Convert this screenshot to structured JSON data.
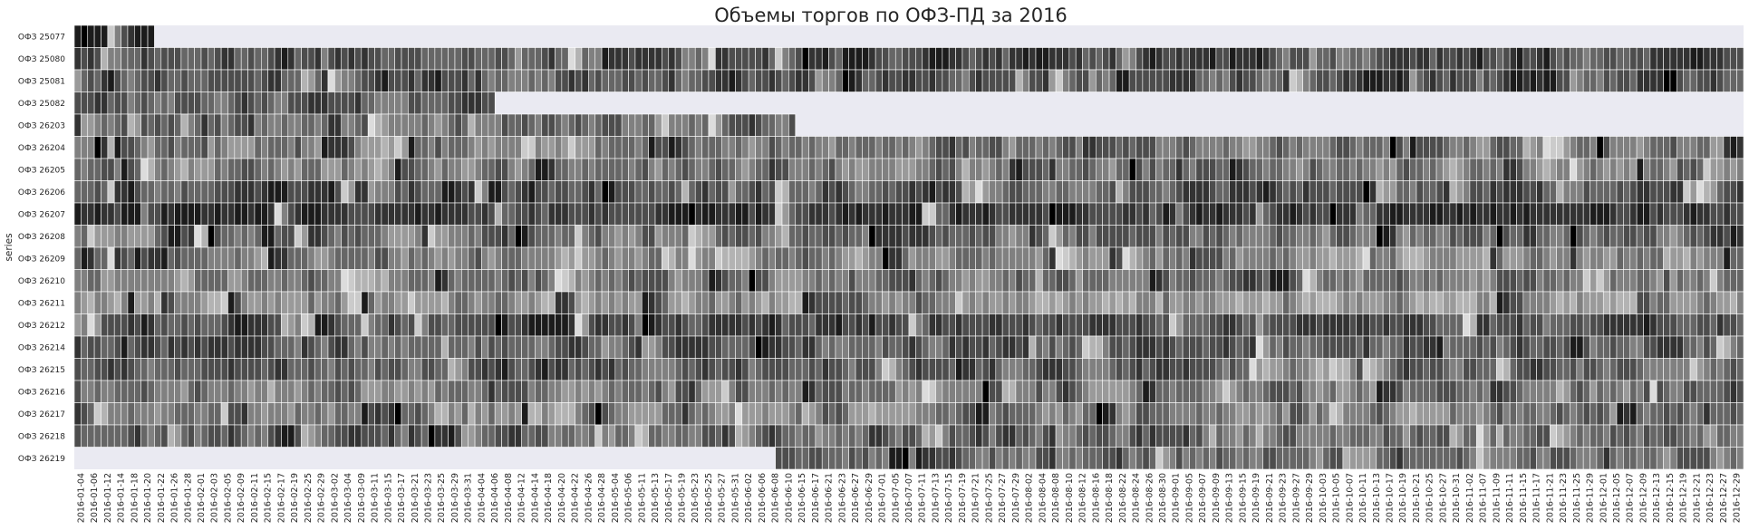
{
  "chart_data": {
    "type": "heatmap",
    "title": "Объемы торгов по ОФЗ-ПД за 2016",
    "ylabel": "series",
    "xlabel": "",
    "colormap": "greys",
    "missing_color": "#eaeaf2",
    "grid_color": "#ffffff",
    "y_categories": [
      "ОФЗ 25077",
      "ОФЗ 25080",
      "ОФЗ 25081",
      "ОФЗ 25082",
      "ОФЗ 26203",
      "ОФЗ 26204",
      "ОФЗ 26205",
      "ОФЗ 26206",
      "ОФЗ 26207",
      "ОФЗ 26208",
      "ОФЗ 26209",
      "ОФЗ 26210",
      "ОФЗ 26211",
      "ОФЗ 26212",
      "ОФЗ 26214",
      "ОФЗ 26215",
      "ОФЗ 26216",
      "ОФЗ 26217",
      "ОФЗ 26218",
      "ОФЗ 26219"
    ],
    "x_categories": [
      "2016-01-04",
      "2016-01-06",
      "2016-01-12",
      "2016-01-14",
      "2016-01-18",
      "2016-01-20",
      "2016-01-22",
      "2016-01-26",
      "2016-01-28",
      "2016-02-01",
      "2016-02-03",
      "2016-02-05",
      "2016-02-09",
      "2016-02-11",
      "2016-02-15",
      "2016-02-17",
      "2016-02-19",
      "2016-02-25",
      "2016-02-29",
      "2016-03-02",
      "2016-03-04",
      "2016-03-09",
      "2016-03-11",
      "2016-03-15",
      "2016-03-17",
      "2016-03-21",
      "2016-03-23",
      "2016-03-25",
      "2016-03-29",
      "2016-03-31",
      "2016-04-04",
      "2016-04-06",
      "2016-04-08",
      "2016-04-12",
      "2016-04-14",
      "2016-04-18",
      "2016-04-20",
      "2016-04-22",
      "2016-04-26",
      "2016-04-28",
      "2016-05-04",
      "2016-05-06",
      "2016-05-11",
      "2016-05-13",
      "2016-05-17",
      "2016-05-19",
      "2016-05-23",
      "2016-05-25",
      "2016-05-27",
      "2016-05-31",
      "2016-06-02",
      "2016-06-06",
      "2016-06-08",
      "2016-06-10",
      "2016-06-15",
      "2016-06-17",
      "2016-06-21",
      "2016-06-23",
      "2016-06-27",
      "2016-06-29",
      "2016-07-01",
      "2016-07-05",
      "2016-07-07",
      "2016-07-11",
      "2016-07-13",
      "2016-07-15",
      "2016-07-19",
      "2016-07-21",
      "2016-07-25",
      "2016-07-27",
      "2016-07-29",
      "2016-08-02",
      "2016-08-04",
      "2016-08-08",
      "2016-08-10",
      "2016-08-12",
      "2016-08-16",
      "2016-08-18",
      "2016-08-22",
      "2016-08-24",
      "2016-08-26",
      "2016-08-30",
      "2016-09-01",
      "2016-09-05",
      "2016-09-07",
      "2016-09-09",
      "2016-09-13",
      "2016-09-15",
      "2016-09-19",
      "2016-09-21",
      "2016-09-23",
      "2016-09-27",
      "2016-09-29",
      "2016-10-03",
      "2016-10-05",
      "2016-10-07",
      "2016-10-11",
      "2016-10-13",
      "2016-10-17",
      "2016-10-19",
      "2016-10-21",
      "2016-10-25",
      "2016-10-27",
      "2016-10-31",
      "2016-11-02",
      "2016-11-07",
      "2016-11-09",
      "2016-11-11",
      "2016-11-15",
      "2016-11-17",
      "2016-11-21",
      "2016-11-23",
      "2016-11-25",
      "2016-11-29",
      "2016-12-01",
      "2016-12-05",
      "2016-12-07",
      "2016-12-09",
      "2016-12-13",
      "2016-12-15",
      "2016-12-19",
      "2016-12-21",
      "2016-12-23",
      "2016-12-27",
      "2016-12-29"
    ],
    "cells_per_label": 2,
    "value_range": [
      0,
      1
    ],
    "series_activity": [
      {
        "start": 0,
        "end": 11,
        "base": 0.95,
        "spread": 0.15
      },
      {
        "start": 0,
        "end": 249,
        "base": 0.68,
        "spread": 0.3
      },
      {
        "start": 0,
        "end": 249,
        "base": 0.66,
        "spread": 0.32
      },
      {
        "start": 0,
        "end": 62,
        "base": 0.6,
        "spread": 0.32
      },
      {
        "start": 0,
        "end": 107,
        "base": 0.62,
        "spread": 0.32
      },
      {
        "start": 0,
        "end": 249,
        "base": 0.5,
        "spread": 0.32
      },
      {
        "start": 0,
        "end": 249,
        "base": 0.48,
        "spread": 0.32
      },
      {
        "start": 0,
        "end": 249,
        "base": 0.66,
        "spread": 0.3
      },
      {
        "start": 0,
        "end": 249,
        "base": 0.8,
        "spread": 0.22
      },
      {
        "start": 0,
        "end": 249,
        "base": 0.55,
        "spread": 0.32
      },
      {
        "start": 0,
        "end": 249,
        "base": 0.42,
        "spread": 0.3
      },
      {
        "start": 0,
        "end": 249,
        "base": 0.52,
        "spread": 0.32
      },
      {
        "start": 0,
        "end": 249,
        "base": 0.38,
        "spread": 0.3
      },
      {
        "start": 0,
        "end": 249,
        "base": 0.72,
        "spread": 0.28
      },
      {
        "start": 0,
        "end": 249,
        "base": 0.62,
        "spread": 0.32
      },
      {
        "start": 0,
        "end": 249,
        "base": 0.6,
        "spread": 0.32
      },
      {
        "start": 0,
        "end": 249,
        "base": 0.52,
        "spread": 0.32
      },
      {
        "start": 0,
        "end": 249,
        "base": 0.5,
        "spread": 0.34
      },
      {
        "start": 0,
        "end": 249,
        "base": 0.6,
        "spread": 0.34
      },
      {
        "start": 105,
        "end": 249,
        "base": 0.58,
        "spread": 0.34
      }
    ]
  }
}
